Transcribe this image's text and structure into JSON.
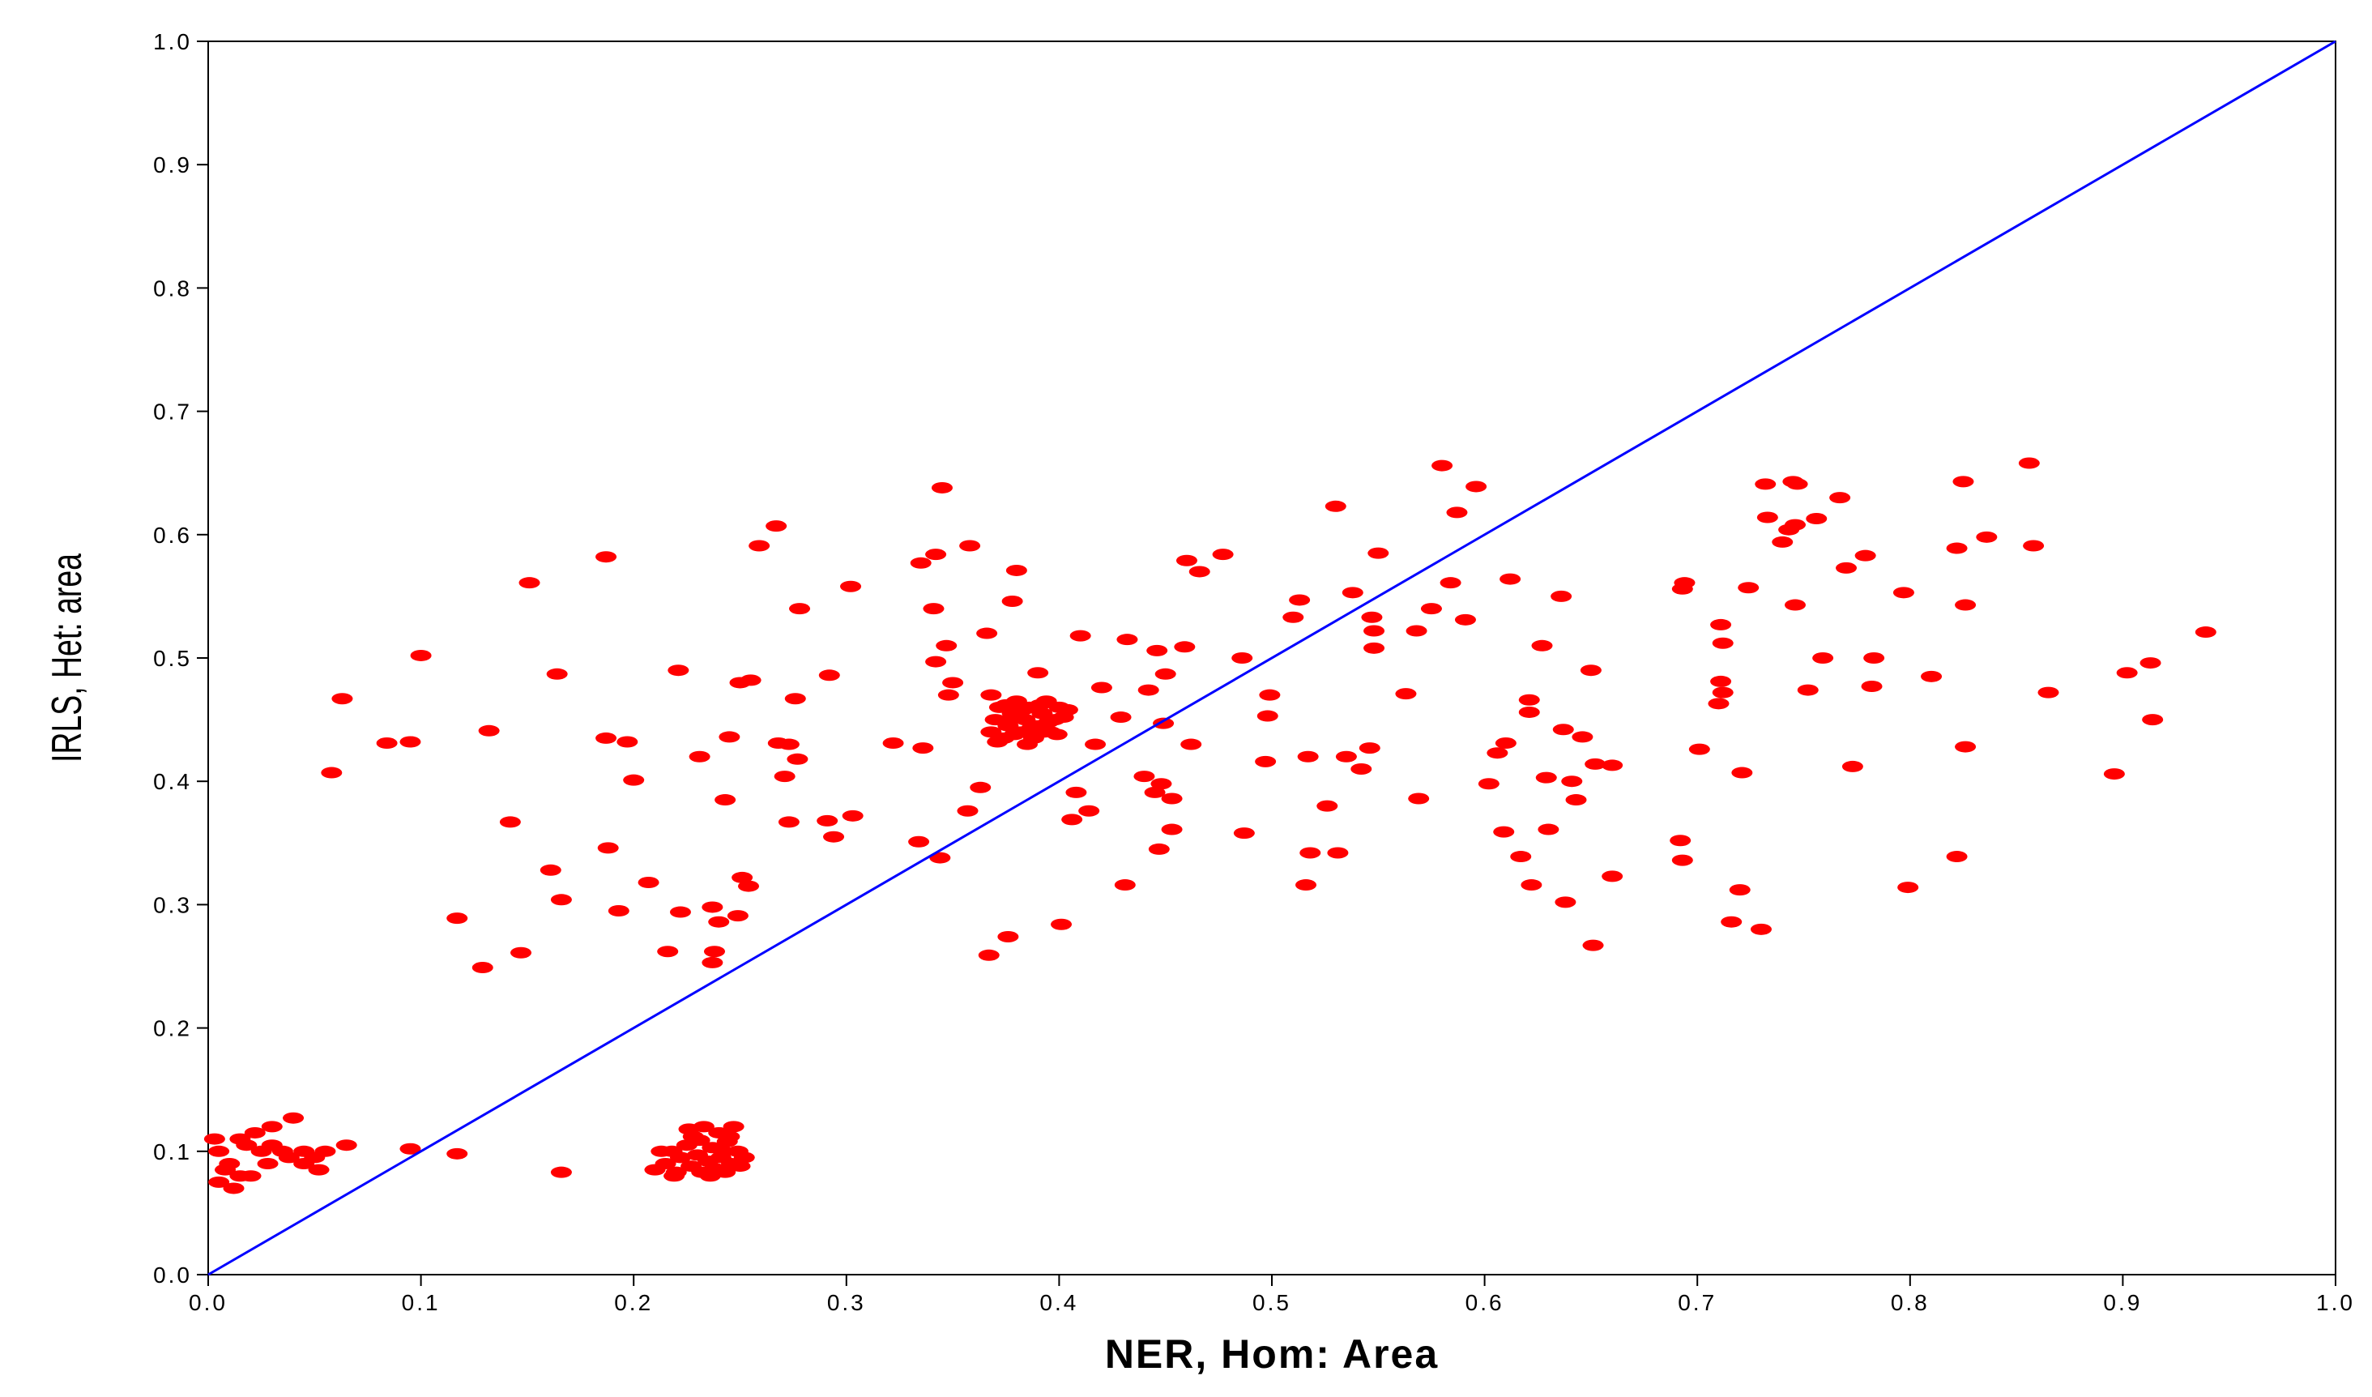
{
  "chart_data": {
    "type": "scatter",
    "x_label": "NER, Hom: Area",
    "y_label": "IRLS, Het: area",
    "xlim": [
      0,
      1
    ],
    "ylim": [
      0,
      1
    ],
    "xticks": [
      {
        "value": 0,
        "label": "0.0"
      },
      0.1,
      0.2,
      0.3,
      0.4,
      0.5,
      0.6,
      0.7,
      0.8,
      0.9,
      {
        "value": 1,
        "label": "1.0"
      }
    ],
    "yticks": [
      {
        "value": 0,
        "label": "0.0"
      },
      0.1,
      0.2,
      0.3,
      0.4,
      0.5,
      0.6,
      0.7,
      0.8,
      0.9,
      {
        "value": 1,
        "label": "1.0"
      }
    ],
    "color": "#ff0000",
    "reference_line": {
      "x": [
        0,
        1
      ],
      "values": [
        0,
        1
      ],
      "color": "#0000ff"
    },
    "x": [
      0.005,
      0.01,
      0.015,
      0.02,
      0.025,
      0.03,
      0.035,
      0.04,
      0.045,
      0.05,
      0.052,
      0.055,
      0.065,
      0.005,
      0.012,
      0.018,
      0.008,
      0.028,
      0.038,
      0.022,
      0.003,
      0.015,
      0.03,
      0.045,
      0.095,
      0.117,
      0.166,
      0.21,
      0.215,
      0.218,
      0.22,
      0.222,
      0.225,
      0.227,
      0.228,
      0.23,
      0.232,
      0.233,
      0.235,
      0.237,
      0.238,
      0.24,
      0.241,
      0.243,
      0.244,
      0.246,
      0.247,
      0.249,
      0.25,
      0.252,
      0.226,
      0.219,
      0.231,
      0.236,
      0.242,
      0.213,
      0.245,
      0.368,
      0.37,
      0.372,
      0.374,
      0.376,
      0.378,
      0.38,
      0.382,
      0.384,
      0.386,
      0.388,
      0.39,
      0.392,
      0.394,
      0.396,
      0.398,
      0.4,
      0.402,
      0.404,
      0.371,
      0.375,
      0.379,
      0.383,
      0.387,
      0.391,
      0.395,
      0.399,
      0.385,
      0.377,
      0.393,
      0.058,
      0.063,
      0.084,
      0.095,
      0.1,
      0.117,
      0.129,
      0.132,
      0.142,
      0.147,
      0.151,
      0.161,
      0.164,
      0.166,
      0.187,
      0.187,
      0.188,
      0.193,
      0.197,
      0.2,
      0.207,
      0.216,
      0.221,
      0.222,
      0.231,
      0.237,
      0.237,
      0.238,
      0.24,
      0.243,
      0.245,
      0.249,
      0.25,
      0.251,
      0.254,
      0.255,
      0.259,
      0.267,
      0.268,
      0.271,
      0.273,
      0.273,
      0.276,
      0.277,
      0.278,
      0.291,
      0.292,
      0.294,
      0.302,
      0.303,
      0.322,
      0.334,
      0.335,
      0.336,
      0.341,
      0.342,
      0.342,
      0.344,
      0.345,
      0.347,
      0.35,
      0.348,
      0.357,
      0.358,
      0.363,
      0.366,
      0.367,
      0.368,
      0.376,
      0.378,
      0.38,
      0.39,
      0.401,
      0.406,
      0.408,
      0.41,
      0.414,
      0.417,
      0.42,
      0.429,
      0.431,
      0.432,
      0.44,
      0.442,
      0.445,
      0.446,
      0.447,
      0.448,
      0.449,
      0.45,
      0.453,
      0.453,
      0.459,
      0.46,
      0.462,
      0.466,
      0.477,
      0.486,
      0.487,
      0.497,
      0.498,
      0.499,
      0.51,
      0.513,
      0.516,
      0.517,
      0.518,
      0.526,
      0.53,
      0.531,
      0.535,
      0.538,
      0.542,
      0.546,
      0.547,
      0.548,
      0.548,
      0.55,
      0.563,
      0.568,
      0.569,
      0.575,
      0.58,
      0.584,
      0.587,
      0.591,
      0.596,
      0.602,
      0.606,
      0.609,
      0.61,
      0.612,
      0.617,
      0.621,
      0.621,
      0.622,
      0.627,
      0.629,
      0.63,
      0.636,
      0.637,
      0.638,
      0.641,
      0.643,
      0.646,
      0.65,
      0.651,
      0.652,
      0.66,
      0.66,
      0.692,
      0.693,
      0.693,
      0.694,
      0.701,
      0.71,
      0.711,
      0.711,
      0.712,
      0.712,
      0.716,
      0.72,
      0.721,
      0.724,
      0.73,
      0.732,
      0.733,
      0.74,
      0.743,
      0.745,
      0.746,
      0.746,
      0.747,
      0.752,
      0.756,
      0.759,
      0.767,
      0.77,
      0.773,
      0.779,
      0.782,
      0.783,
      0.797,
      0.799,
      0.81,
      0.822,
      0.822,
      0.825,
      0.826,
      0.826,
      0.836,
      0.856,
      0.858,
      0.865,
      0.896,
      0.902,
      0.913,
      0.914,
      0.939
    ],
    "values": [
      0.1,
      0.09,
      0.11,
      0.08,
      0.1,
      0.12,
      0.1,
      0.127,
      0.1,
      0.095,
      0.085,
      0.1,
      0.105,
      0.075,
      0.07,
      0.105,
      0.085,
      0.09,
      0.095,
      0.115,
      0.11,
      0.08,
      0.105,
      0.09,
      0.102,
      0.098,
      0.083,
      0.085,
      0.09,
      0.1,
      0.083,
      0.095,
      0.105,
      0.088,
      0.112,
      0.097,
      0.083,
      0.12,
      0.092,
      0.103,
      0.086,
      0.115,
      0.095,
      0.083,
      0.108,
      0.09,
      0.12,
      0.1,
      0.088,
      0.095,
      0.118,
      0.08,
      0.109,
      0.08,
      0.1,
      0.1,
      0.112,
      0.44,
      0.45,
      0.46,
      0.435,
      0.445,
      0.455,
      0.465,
      0.44,
      0.45,
      0.46,
      0.435,
      0.445,
      0.455,
      0.465,
      0.44,
      0.45,
      0.46,
      0.452,
      0.458,
      0.432,
      0.462,
      0.438,
      0.458,
      0.443,
      0.462,
      0.448,
      0.438,
      0.43,
      0.45,
      0.44,
      0.407,
      0.467,
      0.431,
      0.432,
      0.502,
      0.289,
      0.249,
      0.441,
      0.367,
      0.261,
      0.561,
      0.328,
      0.487,
      0.304,
      0.582,
      0.435,
      0.346,
      0.295,
      0.432,
      0.401,
      0.318,
      0.262,
      0.49,
      0.294,
      0.42,
      0.298,
      0.253,
      0.262,
      0.286,
      0.385,
      0.436,
      0.291,
      0.48,
      0.322,
      0.315,
      0.482,
      0.591,
      0.607,
      0.431,
      0.404,
      0.367,
      0.43,
      0.467,
      0.418,
      0.54,
      0.368,
      0.486,
      0.355,
      0.558,
      0.372,
      0.431,
      0.351,
      0.577,
      0.427,
      0.54,
      0.584,
      0.497,
      0.338,
      0.638,
      0.51,
      0.48,
      0.47,
      0.376,
      0.591,
      0.395,
      0.52,
      0.259,
      0.47,
      0.274,
      0.546,
      0.571,
      0.488,
      0.284,
      0.369,
      0.391,
      0.518,
      0.376,
      0.43,
      0.476,
      0.452,
      0.316,
      0.515,
      0.404,
      0.474,
      0.391,
      0.506,
      0.345,
      0.398,
      0.447,
      0.487,
      0.361,
      0.386,
      0.509,
      0.579,
      0.43,
      0.57,
      0.584,
      0.5,
      0.358,
      0.416,
      0.453,
      0.47,
      0.533,
      0.547,
      0.316,
      0.42,
      0.342,
      0.38,
      0.623,
      0.342,
      0.42,
      0.553,
      0.41,
      0.427,
      0.533,
      0.508,
      0.522,
      0.585,
      0.471,
      0.522,
      0.386,
      0.54,
      0.656,
      0.561,
      0.618,
      0.531,
      0.639,
      0.398,
      0.423,
      0.359,
      0.431,
      0.564,
      0.339,
      0.466,
      0.456,
      0.316,
      0.51,
      0.403,
      0.361,
      0.55,
      0.442,
      0.302,
      0.4,
      0.385,
      0.436,
      0.49,
      0.267,
      0.414,
      0.323,
      0.413,
      0.352,
      0.336,
      0.556,
      0.561,
      0.426,
      0.463,
      0.481,
      0.527,
      0.472,
      0.512,
      0.286,
      0.312,
      0.407,
      0.557,
      0.28,
      0.641,
      0.614,
      0.594,
      0.604,
      0.643,
      0.543,
      0.608,
      0.641,
      0.474,
      0.613,
      0.5,
      0.63,
      0.573,
      0.412,
      0.583,
      0.477,
      0.5,
      0.553,
      0.314,
      0.485,
      0.339,
      0.589,
      0.643,
      0.543,
      0.428,
      0.598,
      0.658,
      0.591,
      0.472,
      0.406,
      0.488,
      0.496,
      0.45,
      0.521
    ]
  }
}
